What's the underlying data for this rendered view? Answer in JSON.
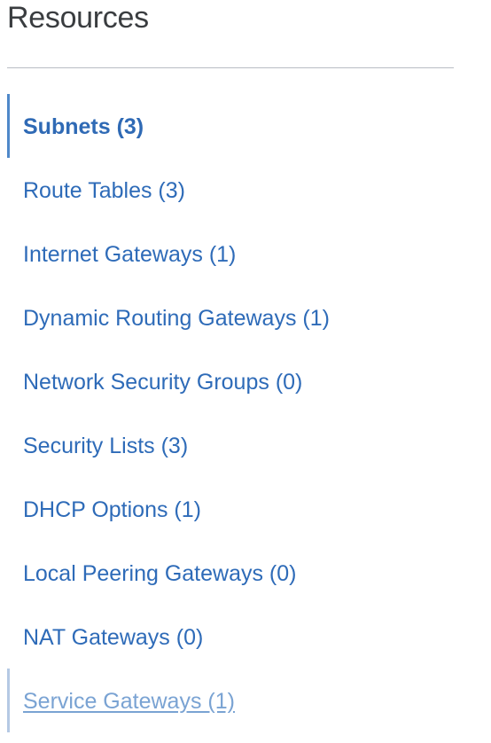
{
  "panel": {
    "title": "Resources"
  },
  "resources": {
    "items": [
      {
        "label": "Subnets (3)",
        "state": "active"
      },
      {
        "label": "Route Tables (3)",
        "state": "normal"
      },
      {
        "label": "Internet Gateways (1)",
        "state": "normal"
      },
      {
        "label": "Dynamic Routing Gateways (1)",
        "state": "normal"
      },
      {
        "label": "Network Security Groups (0)",
        "state": "normal"
      },
      {
        "label": "Security Lists (3)",
        "state": "normal"
      },
      {
        "label": "DHCP Options (1)",
        "state": "normal"
      },
      {
        "label": "Local Peering Gateways (0)",
        "state": "normal"
      },
      {
        "label": "NAT Gateways (0)",
        "state": "normal"
      },
      {
        "label": "Service Gateways (1)",
        "state": "hovered"
      }
    ]
  },
  "colors": {
    "link": "#2e6bb8",
    "active_indicator": "#4f88c9",
    "hover_indicator": "#b5c9e4",
    "hover_link": "#7aa3d3",
    "title": "#3a3d40",
    "divider": "#b9bdc4"
  }
}
